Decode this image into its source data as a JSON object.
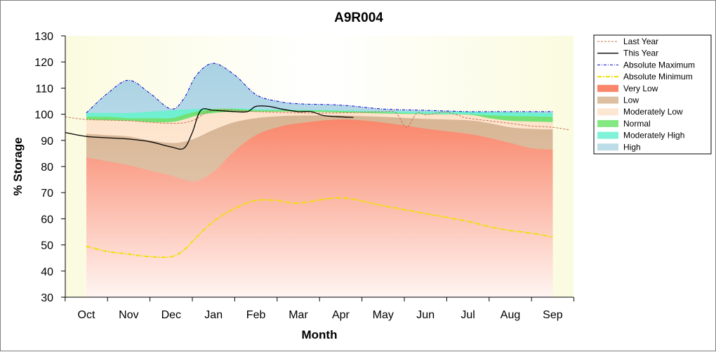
{
  "chart_data": {
    "type": "area",
    "title": "A9R004",
    "xlabel": "Month",
    "ylabel": "% Storage",
    "ylim": [
      30,
      130
    ],
    "yticks": [
      30,
      40,
      50,
      60,
      70,
      80,
      90,
      100,
      110,
      120,
      130
    ],
    "x_tick_labels": [
      "Oct",
      "Nov",
      "Dec",
      "Jan",
      "Feb",
      "Mar",
      "Apr",
      "May",
      "Jun",
      "Jul",
      "Aug",
      "Sep"
    ],
    "legend_position": "right",
    "grid": false,
    "colors": {
      "plot_background": "#fdfde8",
      "very_low": "#f9866a",
      "low": "#dcbfa0",
      "moderately_low": "#fde7d2",
      "normal": "#84e884",
      "moderately_high": "#7ff2d8",
      "high": "#bcdde8",
      "last_year": "#c87050",
      "this_year": "#000000",
      "absolute_maximum": "#0000cc",
      "absolute_minimum": "#f0e000"
    },
    "band_x": [
      0,
      0.5,
      1,
      1.5,
      2,
      2.3,
      2.6,
      3,
      3.5,
      4,
      4.5,
      5,
      6,
      7,
      8,
      9,
      9.5,
      10,
      10.5,
      11
    ],
    "series": [
      {
        "name": "Very Low",
        "kind": "band",
        "upper": [
          83.5,
          82,
          80.5,
          78.5,
          76.5,
          75,
          74.5,
          78,
          86,
          92,
          95,
          96.5,
          98,
          96.8,
          94.5,
          92.5,
          91,
          89,
          87,
          86.5
        ]
      },
      {
        "name": "Low",
        "kind": "band",
        "upper": [
          92.5,
          92,
          91.5,
          90,
          89,
          89.5,
          91,
          94,
          97,
          98.5,
          99.2,
          99.5,
          99.5,
          99,
          98.2,
          97.7,
          96.6,
          95,
          94.4,
          94.2
        ]
      },
      {
        "name": "Moderately Low",
        "kind": "band",
        "upper": [
          98,
          97.7,
          97.5,
          97,
          97,
          98,
          99.5,
          100.5,
          101,
          101,
          101,
          101,
          100.7,
          100.3,
          100,
          99.8,
          98.5,
          97.5,
          97.2,
          97
        ]
      },
      {
        "name": "Normal",
        "kind": "band",
        "upper": [
          99,
          99,
          98.5,
          98.5,
          98.5,
          99.8,
          101,
          102,
          102,
          101.5,
          101.5,
          101.5,
          101.2,
          100.7,
          100.2,
          100,
          99.6,
          99.3,
          99.2,
          99
        ]
      },
      {
        "name": "Moderately High",
        "kind": "band",
        "upper": [
          100.5,
          100.5,
          100.5,
          101,
          101.5,
          101.8,
          102,
          102,
          102.2,
          102,
          101.8,
          101.7,
          101.5,
          101.2,
          101,
          101,
          100.8,
          100.7,
          100.6,
          100.5
        ]
      },
      {
        "name": "High",
        "kind": "band",
        "upper": [
          100.5,
          108,
          113,
          108,
          102,
          106,
          115,
          119.5,
          115,
          107.5,
          105,
          104,
          103.5,
          102,
          101.5,
          101,
          101,
          101,
          101,
          101
        ]
      },
      {
        "name": "Last Year",
        "kind": "line",
        "x": [
          -0.5,
          0,
          1,
          2,
          2.5,
          3,
          4,
          5,
          6,
          7,
          7.3,
          7.5,
          7.6,
          7.8,
          8,
          8.3,
          8.5,
          8.8,
          9,
          10,
          10.5,
          11,
          11.4
        ],
        "y": [
          99,
          98,
          97.5,
          96.5,
          97.5,
          101.5,
          101,
          100.5,
          100.5,
          101,
          100.5,
          95.5,
          95.5,
          100.5,
          99.8,
          100.5,
          100.8,
          99.5,
          98.5,
          96.5,
          95.5,
          95,
          94
        ]
      },
      {
        "name": "This Year",
        "kind": "line",
        "x": [
          -0.5,
          0,
          0.5,
          1,
          1.5,
          2,
          2.3,
          2.5,
          2.7,
          3,
          3.5,
          3.8,
          4,
          4.3,
          4.6,
          5,
          5.3,
          5.6,
          6,
          6.3
        ],
        "y": [
          93,
          91.5,
          91,
          90.5,
          89.5,
          87.5,
          87,
          93,
          101.5,
          101.5,
          101,
          101,
          103,
          103,
          102,
          101,
          101,
          99.5,
          99,
          98.8
        ]
      },
      {
        "name": "Absolute Maximum",
        "kind": "line",
        "x": [
          0,
          0.5,
          1,
          1.5,
          2,
          2.3,
          2.6,
          3,
          3.5,
          4,
          4.5,
          5,
          6,
          7,
          8,
          9,
          9.5,
          10,
          10.5,
          11
        ],
        "y": [
          100.5,
          108,
          113,
          108,
          102,
          106,
          115,
          119.5,
          115,
          107.5,
          105,
          104,
          103.5,
          102,
          101.5,
          101,
          101,
          101,
          101,
          101
        ]
      },
      {
        "name": "Absolute Minimum",
        "kind": "line",
        "x": [
          0,
          0.5,
          1,
          1.5,
          2,
          2.3,
          2.6,
          3,
          3.5,
          4,
          4.5,
          5,
          6,
          7,
          8,
          9,
          9.5,
          10,
          10.5,
          11
        ],
        "y": [
          49.5,
          47.5,
          46.5,
          45.5,
          45.5,
          48,
          53,
          59,
          64,
          67,
          67,
          66,
          68,
          65,
          62,
          59,
          57,
          55.5,
          54.5,
          53
        ]
      }
    ],
    "legend_order": [
      "Last Year",
      "This Year",
      "Absolute Maximum",
      "Absolute Minimum",
      "Very Low",
      "Low",
      "Moderately Low",
      "Normal",
      "Moderately High",
      "High"
    ]
  }
}
